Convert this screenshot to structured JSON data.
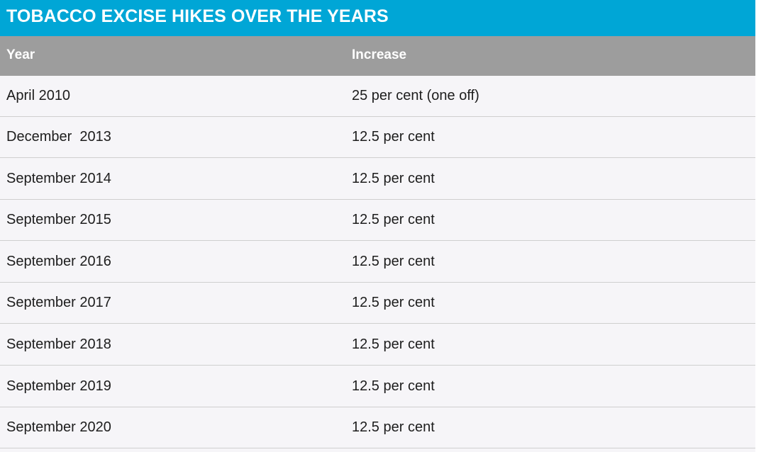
{
  "chart_data": {
    "type": "table",
    "title": "TOBACCO EXCISE HIKES OVER THE YEARS",
    "columns": [
      "Year",
      "Increase"
    ],
    "rows": [
      [
        "April 2010",
        "25 per cent (one off)"
      ],
      [
        "December  2013",
        "12.5 per cent"
      ],
      [
        "September 2014",
        "12.5 per cent"
      ],
      [
        "September 2015",
        "12.5 per cent"
      ],
      [
        "September 2016",
        "12.5 per cent"
      ],
      [
        "September 2017",
        "12.5 per cent"
      ],
      [
        "September 2018",
        "12.5 per cent"
      ],
      [
        "September 2019",
        "12.5 per cent"
      ],
      [
        "September 2020",
        "12.5 per cent"
      ]
    ]
  },
  "colors": {
    "title_bar": "#00a6d6",
    "header_row": "#9d9d9d",
    "body_background": "#f6f5f8",
    "row_divider": "#cfcfcf",
    "text": "#1d1d1d"
  }
}
